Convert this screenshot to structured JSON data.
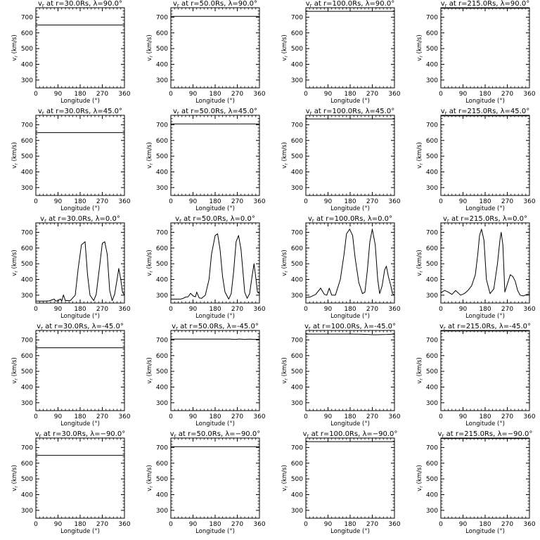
{
  "figure": {
    "tick_label_angle_symbol": "°"
  },
  "chart_data": [
    {
      "type": "line",
      "title": "v_r at r=30.0Rs, λ=90.0°",
      "title_main": "v",
      "title_sub": "r",
      "title_rest": " at r=30.0Rs, λ=90.0°",
      "xlabel": "Longitude (°)",
      "ylabel": "v_r (km/s)",
      "ylabel_main": "v",
      "ylabel_sub": "r",
      "ylabel_rest": " (km/s)",
      "xlim": [
        0,
        360
      ],
      "ylim": [
        250,
        760
      ],
      "xticks": [
        0,
        90,
        180,
        270,
        360
      ],
      "yticks": [
        300,
        400,
        500,
        600,
        700
      ],
      "series": [
        {
          "x": [
            0,
            360
          ],
          "y": [
            650,
            650
          ]
        }
      ]
    },
    {
      "type": "line",
      "title": "v_r at r=50.0Rs, λ=90.0°",
      "title_main": "v",
      "title_sub": "r",
      "title_rest": " at r=50.0Rs, λ=90.0°",
      "xlabel": "Longitude (°)",
      "ylabel": "v_r (km/s)",
      "ylabel_main": "v",
      "ylabel_sub": "r",
      "ylabel_rest": " (km/s)",
      "xlim": [
        0,
        360
      ],
      "ylim": [
        250,
        760
      ],
      "xticks": [
        0,
        90,
        180,
        270,
        360
      ],
      "yticks": [
        300,
        400,
        500,
        600,
        700
      ],
      "series": [
        {
          "x": [
            0,
            360
          ],
          "y": [
            705,
            705
          ]
        }
      ]
    },
    {
      "type": "line",
      "title": "v_r at r=100.0Rs, λ=90.0°",
      "title_main": "v",
      "title_sub": "r",
      "title_rest": " at r=100.0Rs, λ=90.0°",
      "xlabel": "Longitude (°)",
      "ylabel": "v_r (km/s)",
      "ylabel_main": "v",
      "ylabel_sub": "r",
      "ylabel_rest": " (km/s)",
      "xlim": [
        0,
        360
      ],
      "ylim": [
        250,
        760
      ],
      "xticks": [
        0,
        90,
        180,
        270,
        360
      ],
      "yticks": [
        300,
        400,
        500,
        600,
        700
      ],
      "series": [
        {
          "x": [
            0,
            360
          ],
          "y": [
            737,
            737
          ]
        }
      ]
    },
    {
      "type": "line",
      "title": "v_r at r=215.0Rs, λ=90.0°",
      "title_main": "v",
      "title_sub": "r",
      "title_rest": " at r=215.0Rs, λ=90.0°",
      "xlabel": "Longitude (°)",
      "ylabel": "v_r (km/s)",
      "ylabel_main": "v",
      "ylabel_sub": "r",
      "ylabel_rest": " (km/s)",
      "xlim": [
        0,
        360
      ],
      "ylim": [
        250,
        760
      ],
      "xticks": [
        0,
        90,
        180,
        270,
        360
      ],
      "yticks": [
        300,
        400,
        500,
        600,
        700
      ],
      "series": [
        {
          "x": [
            0,
            360
          ],
          "y": [
            757,
            757
          ]
        }
      ]
    },
    {
      "type": "line",
      "title": "v_r at r=30.0Rs, λ=45.0°",
      "title_main": "v",
      "title_sub": "r",
      "title_rest": " at r=30.0Rs, λ=45.0°",
      "xlabel": "Longitude (°)",
      "ylabel": "v_r (km/s)",
      "ylabel_main": "v",
      "ylabel_sub": "r",
      "ylabel_rest": " (km/s)",
      "xlim": [
        0,
        360
      ],
      "ylim": [
        250,
        760
      ],
      "xticks": [
        0,
        90,
        180,
        270,
        360
      ],
      "yticks": [
        300,
        400,
        500,
        600,
        700
      ],
      "series": [
        {
          "x": [
            0,
            360
          ],
          "y": [
            650,
            650
          ]
        }
      ]
    },
    {
      "type": "line",
      "title": "v_r at r=50.0Rs, λ=45.0°",
      "title_main": "v",
      "title_sub": "r",
      "title_rest": " at r=50.0Rs, λ=45.0°",
      "xlabel": "Longitude (°)",
      "ylabel": "v_r (km/s)",
      "ylabel_main": "v",
      "ylabel_sub": "r",
      "ylabel_rest": " (km/s)",
      "xlim": [
        0,
        360
      ],
      "ylim": [
        250,
        760
      ],
      "xticks": [
        0,
        90,
        180,
        270,
        360
      ],
      "yticks": [
        300,
        400,
        500,
        600,
        700
      ],
      "series": [
        {
          "x": [
            0,
            360
          ],
          "y": [
            705,
            705
          ]
        }
      ]
    },
    {
      "type": "line",
      "title": "v_r at r=100.0Rs, λ=45.0°",
      "title_main": "v",
      "title_sub": "r",
      "title_rest": " at r=100.0Rs, λ=45.0°",
      "xlabel": "Longitude (°)",
      "ylabel": "v_r (km/s)",
      "ylabel_main": "v",
      "ylabel_sub": "r",
      "ylabel_rest": " (km/s)",
      "xlim": [
        0,
        360
      ],
      "ylim": [
        250,
        760
      ],
      "xticks": [
        0,
        90,
        180,
        270,
        360
      ],
      "yticks": [
        300,
        400,
        500,
        600,
        700
      ],
      "series": [
        {
          "x": [
            0,
            360
          ],
          "y": [
            737,
            737
          ]
        }
      ]
    },
    {
      "type": "line",
      "title": "v_r at r=215.0Rs, λ=45.0°",
      "title_main": "v",
      "title_sub": "r",
      "title_rest": " at r=215.0Rs, λ=45.0°",
      "xlabel": "Longitude (°)",
      "ylabel": "v_r (km/s)",
      "ylabel_main": "v",
      "ylabel_sub": "r",
      "ylabel_rest": " (km/s)",
      "xlim": [
        0,
        360
      ],
      "ylim": [
        250,
        760
      ],
      "xticks": [
        0,
        90,
        180,
        270,
        360
      ],
      "yticks": [
        300,
        400,
        500,
        600,
        700
      ],
      "series": [
        {
          "x": [
            0,
            360
          ],
          "y": [
            757,
            757
          ]
        }
      ]
    },
    {
      "type": "line",
      "title": "v_r at r=30.0Rs, λ=0.0°",
      "title_main": "v",
      "title_sub": "r",
      "title_rest": " at r=30.0Rs, λ=0.0°",
      "xlabel": "Longitude (°)",
      "ylabel": "v_r (km/s)",
      "ylabel_main": "v",
      "ylabel_sub": "r",
      "ylabel_rest": " (km/s)",
      "xlim": [
        0,
        360
      ],
      "ylim": [
        250,
        760
      ],
      "xticks": [
        0,
        90,
        180,
        270,
        360
      ],
      "yticks": [
        300,
        400,
        500,
        600,
        700
      ],
      "series": [
        {
          "x": [
            0,
            20,
            40,
            55,
            65,
            75,
            80,
            90,
            100,
            105,
            112,
            120,
            140,
            160,
            172,
            185,
            200,
            210,
            220,
            235,
            245,
            258,
            270,
            280,
            290,
            300,
            310,
            320,
            330,
            337,
            345,
            352,
            360
          ],
          "y": [
            262,
            262,
            262,
            264,
            270,
            275,
            262,
            265,
            276,
            262,
            302,
            265,
            265,
            300,
            470,
            620,
            640,
            430,
            300,
            265,
            305,
            470,
            630,
            640,
            560,
            330,
            265,
            305,
            400,
            470,
            400,
            320,
            300
          ]
        }
      ]
    },
    {
      "type": "line",
      "title": "v_r at r=50.0Rs, λ=0.0°",
      "title_main": "v",
      "title_sub": "r",
      "title_rest": " at r=50.0Rs, λ=0.0°",
      "xlabel": "Longitude (°)",
      "ylabel": "v_r (km/s)",
      "ylabel_main": "v",
      "ylabel_sub": "r",
      "ylabel_rest": " (km/s)",
      "xlim": [
        0,
        360
      ],
      "ylim": [
        250,
        760
      ],
      "xticks": [
        0,
        90,
        180,
        270,
        360
      ],
      "yticks": [
        300,
        400,
        500,
        600,
        700
      ],
      "series": [
        {
          "x": [
            0,
            20,
            40,
            50,
            60,
            70,
            80,
            90,
            100,
            105,
            115,
            125,
            140,
            155,
            165,
            180,
            190,
            200,
            210,
            220,
            235,
            245,
            255,
            265,
            275,
            285,
            295,
            300,
            310,
            320,
            330,
            338,
            346,
            352,
            360
          ],
          "y": [
            275,
            275,
            275,
            280,
            288,
            290,
            312,
            295,
            290,
            320,
            282,
            280,
            300,
            400,
            560,
            680,
            690,
            590,
            420,
            320,
            275,
            310,
            450,
            640,
            680,
            590,
            410,
            320,
            280,
            310,
            420,
            500,
            400,
            320,
            310
          ]
        }
      ]
    },
    {
      "type": "line",
      "title": "v_r at r=100.0Rs, λ=0.0°",
      "title_main": "v",
      "title_sub": "r",
      "title_rest": " at r=100.0Rs, λ=0.0°",
      "xlabel": "Longitude (°)",
      "ylabel": "v_r (km/s)",
      "ylabel_main": "v",
      "ylabel_sub": "r",
      "ylabel_rest": " (km/s)",
      "xlim": [
        0,
        360
      ],
      "ylim": [
        250,
        760
      ],
      "xticks": [
        0,
        90,
        180,
        270,
        360
      ],
      "yticks": [
        300,
        400,
        500,
        600,
        700
      ],
      "series": [
        {
          "x": [
            0,
            20,
            40,
            60,
            75,
            85,
            95,
            105,
            120,
            140,
            155,
            165,
            178,
            190,
            200,
            215,
            230,
            240,
            250,
            260,
            270,
            282,
            292,
            300,
            310,
            320,
            327,
            335,
            345,
            352,
            360
          ],
          "y": [
            285,
            290,
            305,
            345,
            305,
            300,
            345,
            300,
            300,
            400,
            560,
            690,
            720,
            680,
            540,
            380,
            310,
            320,
            460,
            640,
            720,
            620,
            400,
            310,
            360,
            460,
            485,
            420,
            360,
            310,
            300
          ]
        }
      ]
    },
    {
      "type": "line",
      "title": "v_r at r=215.0Rs, λ=0.0°",
      "title_main": "v",
      "title_sub": "r",
      "title_rest": " at r=215.0Rs, λ=0.0°",
      "xlabel": "Longitude (°)",
      "ylabel": "v_r (km/s)",
      "ylabel_main": "v",
      "ylabel_sub": "r",
      "ylabel_rest": " (km/s)",
      "xlim": [
        0,
        360
      ],
      "ylim": [
        250,
        760
      ],
      "xticks": [
        0,
        90,
        180,
        270,
        360
      ],
      "yticks": [
        300,
        400,
        500,
        600,
        700
      ],
      "series": [
        {
          "x": [
            0,
            15,
            30,
            45,
            60,
            80,
            95,
            110,
            125,
            140,
            150,
            157,
            165,
            175,
            185,
            200,
            215,
            230,
            240,
            245,
            252,
            260,
            272,
            282,
            292,
            302,
            312,
            322,
            335,
            350,
            360
          ],
          "y": [
            315,
            330,
            320,
            305,
            330,
            300,
            310,
            330,
            360,
            430,
            560,
            680,
            720,
            650,
            400,
            310,
            340,
            500,
            650,
            700,
            620,
            320,
            380,
            430,
            420,
            390,
            330,
            300,
            295,
            305,
            310
          ]
        }
      ]
    },
    {
      "type": "line",
      "title": "v_r at r=30.0Rs, λ=-45.0°",
      "title_main": "v",
      "title_sub": "r",
      "title_rest": " at r=30.0Rs, λ=-45.0°",
      "xlabel": "Longitude (°)",
      "ylabel": "v_r (km/s)",
      "ylabel_main": "v",
      "ylabel_sub": "r",
      "ylabel_rest": " (km/s)",
      "xlim": [
        0,
        360
      ],
      "ylim": [
        250,
        760
      ],
      "xticks": [
        0,
        90,
        180,
        270,
        360
      ],
      "yticks": [
        300,
        400,
        500,
        600,
        700
      ],
      "series": [
        {
          "x": [
            0,
            360
          ],
          "y": [
            650,
            650
          ]
        }
      ]
    },
    {
      "type": "line",
      "title": "v_r at r=50.0Rs, λ=-45.0°",
      "title_main": "v",
      "title_sub": "r",
      "title_rest": " at r=50.0Rs, λ=-45.0°",
      "xlabel": "Longitude (°)",
      "ylabel": "v_r (km/s)",
      "ylabel_main": "v",
      "ylabel_sub": "r",
      "ylabel_rest": " (km/s)",
      "xlim": [
        0,
        360
      ],
      "ylim": [
        250,
        760
      ],
      "xticks": [
        0,
        90,
        180,
        270,
        360
      ],
      "yticks": [
        300,
        400,
        500,
        600,
        700
      ],
      "series": [
        {
          "x": [
            0,
            240,
            260,
            280,
            300,
            320,
            340,
            360
          ],
          "y": [
            705,
            705,
            703,
            706,
            703,
            705,
            703,
            705
          ]
        }
      ]
    },
    {
      "type": "line",
      "title": "v_r at r=100.0Rs, λ=-45.0°",
      "title_main": "v",
      "title_sub": "r",
      "title_rest": " at r=100.0Rs, λ=-45.0°",
      "xlabel": "Longitude (°)",
      "ylabel": "v_r (km/s)",
      "ylabel_main": "v",
      "ylabel_sub": "r",
      "ylabel_rest": " (km/s)",
      "xlim": [
        0,
        360
      ],
      "ylim": [
        250,
        760
      ],
      "xticks": [
        0,
        90,
        180,
        270,
        360
      ],
      "yticks": [
        300,
        400,
        500,
        600,
        700
      ],
      "series": [
        {
          "x": [
            0,
            180,
            230,
            280,
            330,
            360
          ],
          "y": [
            737,
            737,
            736,
            733,
            735,
            737
          ]
        }
      ]
    },
    {
      "type": "line",
      "title": "v_r at r=215.0Rs, λ=-45.0°",
      "title_main": "v",
      "title_sub": "r",
      "title_rest": " at r=215.0Rs, λ=-45.0°",
      "xlabel": "Longitude (°)",
      "ylabel": "v_r (km/s)",
      "ylabel_main": "v",
      "ylabel_sub": "r",
      "ylabel_rest": " (km/s)",
      "xlim": [
        0,
        360
      ],
      "ylim": [
        250,
        760
      ],
      "xticks": [
        0,
        90,
        180,
        270,
        360
      ],
      "yticks": [
        300,
        400,
        500,
        600,
        700
      ],
      "series": [
        {
          "x": [
            0,
            360
          ],
          "y": [
            757,
            757
          ]
        }
      ]
    },
    {
      "type": "line",
      "title": "v_r at r=30.0Rs, λ=-90.0°",
      "title_main": "v",
      "title_sub": "r",
      "title_rest": " at r=30.0Rs, λ=−90.0°",
      "xlabel": "Longitude (°)",
      "ylabel": "v_r (km/s)",
      "ylabel_main": "v",
      "ylabel_sub": "r",
      "ylabel_rest": " (km/s)",
      "xlim": [
        0,
        360
      ],
      "ylim": [
        250,
        760
      ],
      "xticks": [
        0,
        90,
        180,
        270,
        360
      ],
      "yticks": [
        300,
        400,
        500,
        600,
        700
      ],
      "series": [
        {
          "x": [
            0,
            360
          ],
          "y": [
            650,
            650
          ]
        }
      ]
    },
    {
      "type": "line",
      "title": "v_r at r=50.0Rs, λ=-90.0°",
      "title_main": "v",
      "title_sub": "r",
      "title_rest": " at r=50.0Rs, λ=−90.0°",
      "xlabel": "Longitude (°)",
      "ylabel": "v_r (km/s)",
      "ylabel_main": "v",
      "ylabel_sub": "r",
      "ylabel_rest": " (km/s)",
      "xlim": [
        0,
        360
      ],
      "ylim": [
        250,
        760
      ],
      "xticks": [
        0,
        90,
        180,
        270,
        360
      ],
      "yticks": [
        300,
        400,
        500,
        600,
        700
      ],
      "series": [
        {
          "x": [
            0,
            360
          ],
          "y": [
            705,
            705
          ]
        }
      ]
    },
    {
      "type": "line",
      "title": "v_r at r=100.0Rs, λ=-90.0°",
      "title_main": "v",
      "title_sub": "r",
      "title_rest": " at r=100.0Rs, λ=−90.0°",
      "xlabel": "Longitude (°)",
      "ylabel": "v_r (km/s)",
      "ylabel_main": "v",
      "ylabel_sub": "r",
      "ylabel_rest": " (km/s)",
      "xlim": [
        0,
        360
      ],
      "ylim": [
        250,
        760
      ],
      "xticks": [
        0,
        90,
        180,
        270,
        360
      ],
      "yticks": [
        300,
        400,
        500,
        600,
        700
      ],
      "series": [
        {
          "x": [
            0,
            360
          ],
          "y": [
            737,
            737
          ]
        }
      ]
    },
    {
      "type": "line",
      "title": "v_r at r=215.0Rs, λ=-90.0°",
      "title_main": "v",
      "title_sub": "r",
      "title_rest": " at r=215.0Rs, λ=−90.0°",
      "xlabel": "Longitude (°)",
      "ylabel": "v_r (km/s)",
      "ylabel_main": "v",
      "ylabel_sub": "r",
      "ylabel_rest": " (km/s)",
      "xlim": [
        0,
        360
      ],
      "ylim": [
        250,
        760
      ],
      "xticks": [
        0,
        90,
        180,
        270,
        360
      ],
      "yticks": [
        300,
        400,
        500,
        600,
        700
      ],
      "series": [
        {
          "x": [
            0,
            360
          ],
          "y": [
            757,
            757
          ]
        }
      ]
    }
  ]
}
